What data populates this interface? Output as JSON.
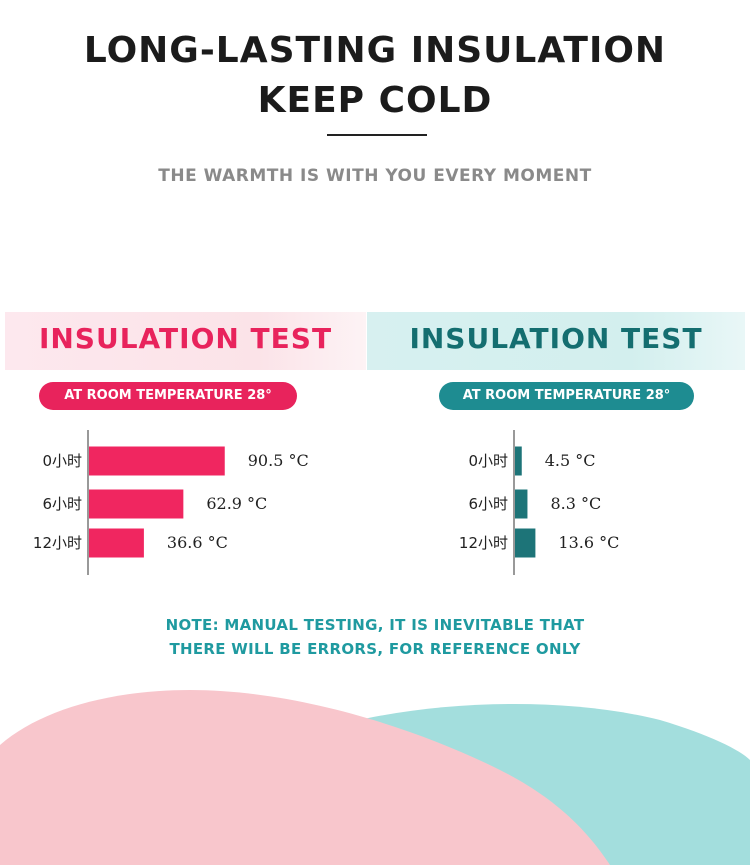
{
  "title": {
    "line1": "LONG-LASTING INSULATION",
    "line2": "KEEP COLD"
  },
  "subtitle": "THE WARMTH IS WITH YOU EVERY MOMENT",
  "panels": [
    {
      "heading": "INSULATION TEST",
      "badge": "AT ROOM TEMPERATURE 28°"
    },
    {
      "heading": "INSULATION TEST",
      "badge": "AT ROOM TEMPERATURE 28°"
    }
  ],
  "chart_data": [
    {
      "type": "bar",
      "orientation": "horizontal",
      "categories": [
        "0小时",
        "6小时",
        "12小时"
      ],
      "values": [
        90.5,
        62.9,
        36.6
      ],
      "value_labels": [
        "90.5 °C",
        "62.9 °C",
        "36.6 °C"
      ],
      "unit": "°C",
      "xlim": [
        0,
        100
      ],
      "color": "#f02660",
      "grid": false
    },
    {
      "type": "bar",
      "orientation": "horizontal",
      "categories": [
        "0小时",
        "6小时",
        "12小时"
      ],
      "values": [
        4.5,
        8.3,
        13.6
      ],
      "value_labels": [
        "4.5 °C",
        "8.3 °C",
        "13.6 °C"
      ],
      "unit": "°C",
      "xlim": [
        0,
        100
      ],
      "color": "#1d7478",
      "grid": false
    }
  ],
  "note": {
    "line1": "NOTE: MANUAL TESTING, IT IS INEVITABLE THAT",
    "line2": "THERE WILL BE ERRORS, FOR REFERENCE ONLY"
  },
  "colors": {
    "pink": "#e8235c",
    "teal": "#1e8c91",
    "wave_pink": "#f8c6cc",
    "wave_teal": "#a3dedd"
  }
}
